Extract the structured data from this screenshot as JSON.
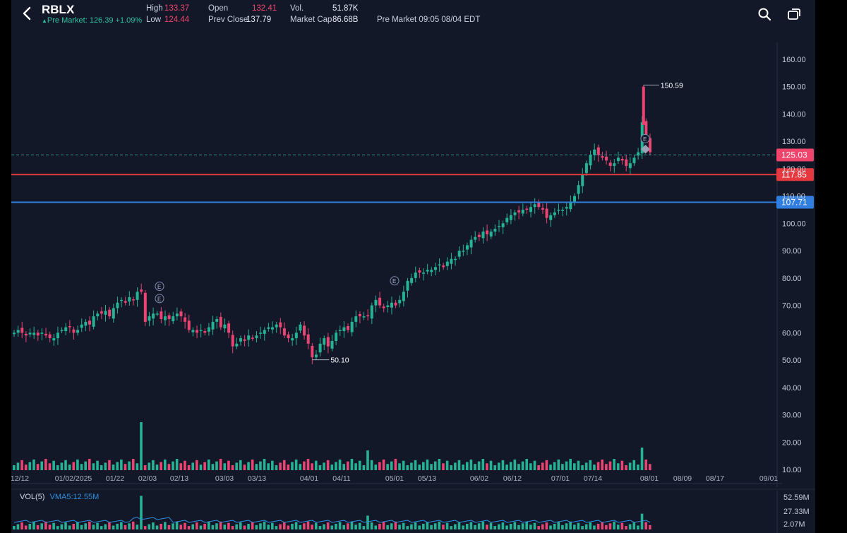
{
  "header": {
    "ticker": "RBLX",
    "premarket": "Pre Market: 126.39 +1.09%",
    "high_label": "High",
    "high_value": "133.37",
    "low_label": "Low",
    "low_value": "124.44",
    "open_label": "Open",
    "open_value": "132.41",
    "prev_close_label": "Prev Close",
    "prev_close_value": "137.79",
    "vol_label": "Vol.",
    "vol_value": "51.87K",
    "mcap_label": "Market Cap",
    "mcap_value": "86.68B",
    "session": "Pre Market 09:05 08/04 EDT",
    "icons": [
      "back-arrow-icon",
      "search-icon",
      "rotate-screen-icon"
    ]
  },
  "chart_data": {
    "type": "candlestick",
    "y_axis_ticks": [
      "160.00",
      "150.00",
      "140.00",
      "130.00",
      "120.00",
      "110.00",
      "100.00",
      "90.00",
      "80.00",
      "70.00",
      "60.00",
      "50.00",
      "40.00",
      "30.00",
      "20.00",
      "10.00"
    ],
    "ylim": [
      10,
      160
    ],
    "x_axis_ticks": [
      "12/12",
      "01/02/2025",
      "01/22",
      "02/03",
      "02/13",
      "03/03",
      "03/13",
      "04/01",
      "04/11",
      "05/01",
      "05/13",
      "06/02",
      "06/12",
      "07/01",
      "07/14",
      "08/01",
      "08/09",
      "08/17",
      "09/01"
    ],
    "price_series_close": [
      60,
      61,
      60,
      59,
      60,
      60,
      59,
      60,
      59,
      58,
      58,
      60,
      61,
      62,
      62,
      60,
      61,
      63,
      64,
      63,
      66,
      67,
      67,
      68,
      66,
      69,
      71,
      72,
      71,
      73,
      72,
      75,
      75,
      64,
      66,
      67,
      67,
      65,
      66,
      65,
      66,
      67,
      66,
      64,
      61,
      61,
      60,
      61,
      60,
      62,
      64,
      65,
      62,
      63,
      60,
      55,
      56,
      58,
      57,
      59,
      58,
      59,
      60,
      61,
      62,
      62,
      63,
      62,
      59,
      58,
      58,
      60,
      63,
      59,
      56,
      51,
      52,
      56,
      58,
      55,
      57,
      60,
      61,
      62,
      61,
      64,
      66,
      66,
      66,
      66,
      70,
      72,
      70,
      69,
      70,
      71,
      70,
      72,
      75,
      79,
      80,
      82,
      82,
      82,
      83,
      83,
      84,
      85,
      84,
      86,
      87,
      87,
      90,
      90,
      92,
      94,
      95,
      95,
      97,
      96,
      97,
      98,
      99,
      100,
      102,
      103,
      104,
      104,
      105,
      105,
      106,
      107,
      106,
      105,
      102,
      103,
      104,
      105,
      105,
      106,
      108,
      110,
      114,
      118,
      122,
      125,
      127,
      125,
      124,
      123,
      121,
      122,
      124,
      123,
      121,
      122,
      124,
      126,
      137,
      132,
      126
    ],
    "high_marker": "150.59",
    "low_marker": "50.10",
    "last_price_label": "125.03",
    "red_line_label": "117.85",
    "blue_line_label": "107.71",
    "earnings_marker_label": "E"
  },
  "volume": {
    "title": "VOL(5)",
    "vma_label": "VMA5:12.55M",
    "axis_ticks": [
      "52.59M",
      "27.33M",
      "2.07M"
    ]
  },
  "colors": {
    "up": "#26b395",
    "down": "#e94472",
    "red_line": "#e5393f",
    "blue_line": "#2f7ee0",
    "last_price": "#f0456b",
    "background": "#121828"
  }
}
